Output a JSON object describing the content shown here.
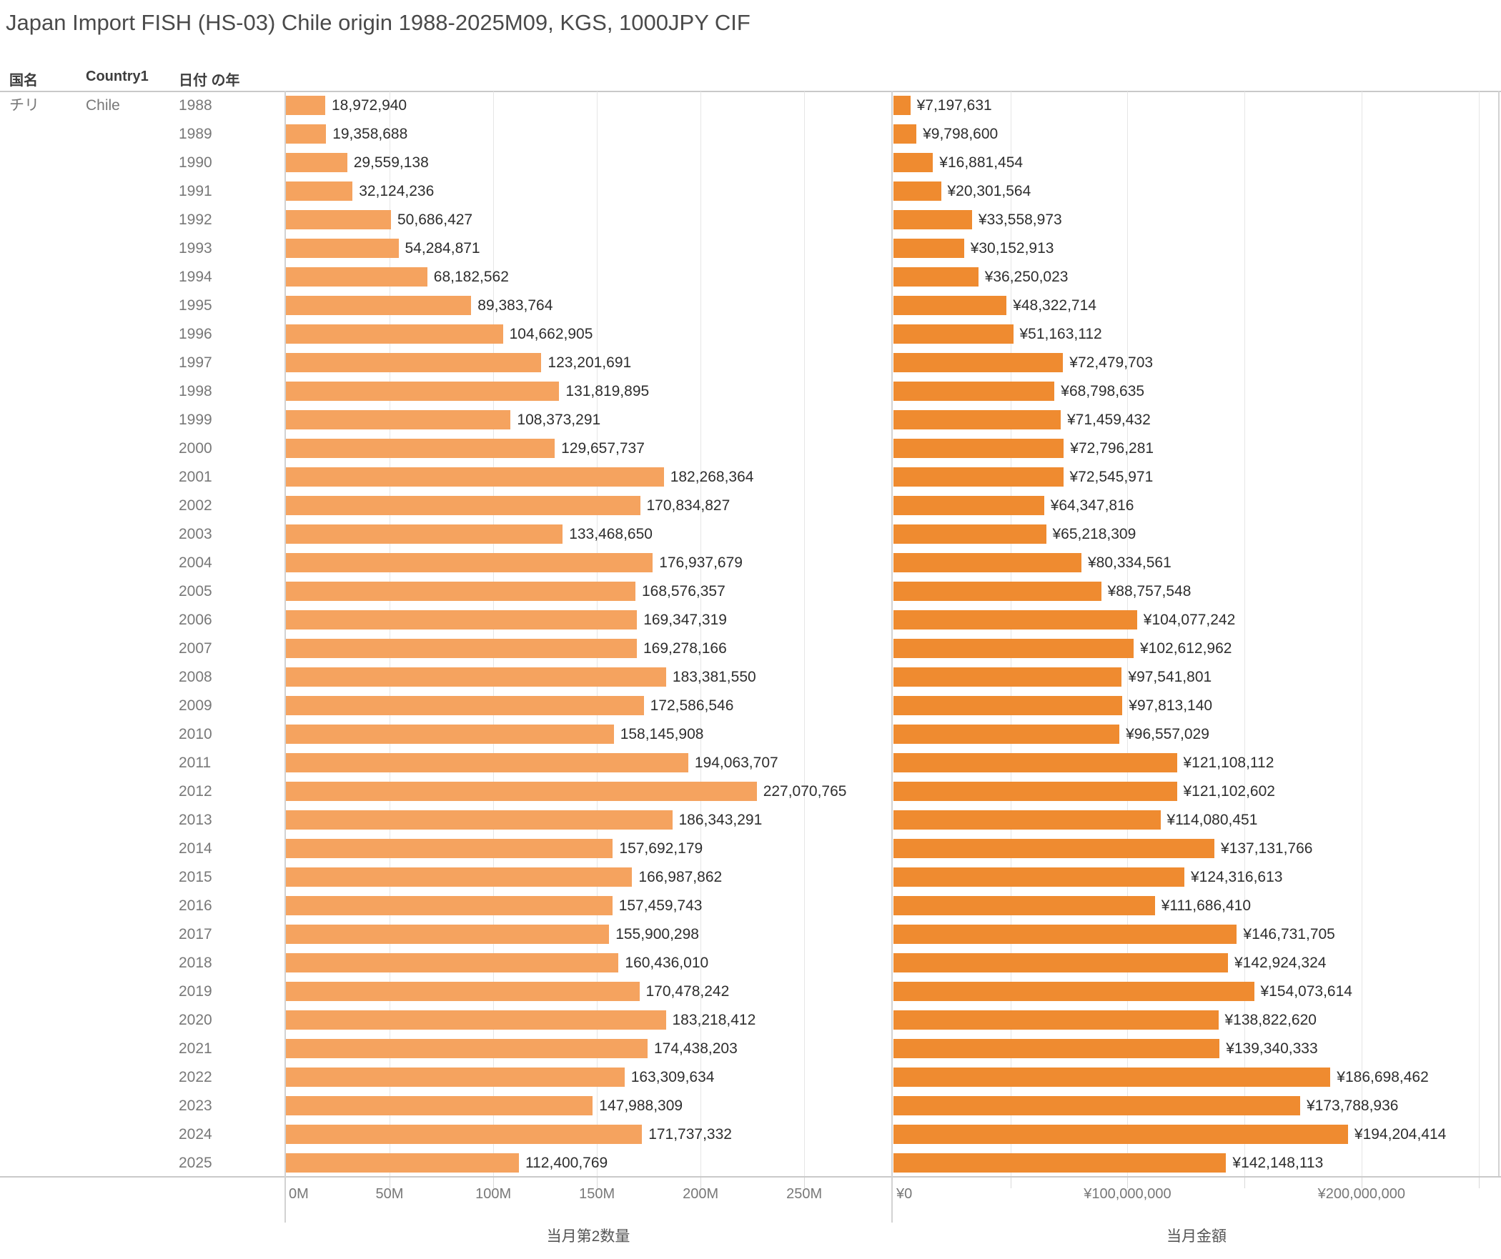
{
  "title": "Japan Import FISH (HS-03) Chile origin 1988-2025M09, KGS, 1000JPY CIF",
  "row_headers": {
    "col1": "国名",
    "col2": "Country1",
    "col3": "日付 の年"
  },
  "row_values": {
    "country_jp": "チリ",
    "country_en": "Chile"
  },
  "colors": {
    "qty_bar": "#F5A35F",
    "amount_bar": "#EF8B30",
    "gridline": "#e6e6e6",
    "axis_line": "#c9c9c9",
    "value_text": "#2e2e2e",
    "dim_text": "#787878",
    "header_text": "#3d3d3d",
    "title_text": "#4a4a4a"
  },
  "chart_data": [
    {
      "type": "bar",
      "name": "quantity",
      "title": "当月第2数量",
      "orientation": "horizontal",
      "legend": null,
      "grid": true,
      "categories": [
        1988,
        1989,
        1990,
        1991,
        1992,
        1993,
        1994,
        1995,
        1996,
        1997,
        1998,
        1999,
        2000,
        2001,
        2002,
        2003,
        2004,
        2005,
        2006,
        2007,
        2008,
        2009,
        2010,
        2011,
        2012,
        2013,
        2014,
        2015,
        2016,
        2017,
        2018,
        2019,
        2020,
        2021,
        2022,
        2023,
        2024,
        2025
      ],
      "values": [
        18972940,
        19358688,
        29559138,
        32124236,
        50686427,
        54284871,
        68182562,
        89383764,
        104662905,
        123201691,
        131819895,
        108373291,
        129657737,
        182268364,
        170834827,
        133468650,
        176937679,
        168576357,
        169347319,
        169278166,
        183381550,
        172586546,
        158145908,
        194063707,
        227070765,
        186343291,
        157692179,
        166987862,
        157459743,
        155900298,
        160436010,
        170478242,
        183218412,
        174438203,
        163309634,
        147988309,
        171737332,
        112400769
      ],
      "value_prefix": "",
      "xlim": [
        0,
        292000000
      ],
      "gridlines": [
        50000000,
        100000000,
        150000000,
        200000000,
        250000000
      ],
      "ticks": [
        {
          "value": 0,
          "label": "0M"
        },
        {
          "value": 50000000,
          "label": "50M"
        },
        {
          "value": 100000000,
          "label": "100M"
        },
        {
          "value": 150000000,
          "label": "150M"
        },
        {
          "value": 200000000,
          "label": "200M"
        },
        {
          "value": 250000000,
          "label": "250M"
        }
      ]
    },
    {
      "type": "bar",
      "name": "amount",
      "title": "当月金額",
      "orientation": "horizontal",
      "legend": null,
      "grid": true,
      "categories": [
        1988,
        1989,
        1990,
        1991,
        1992,
        1993,
        1994,
        1995,
        1996,
        1997,
        1998,
        1999,
        2000,
        2001,
        2002,
        2003,
        2004,
        2005,
        2006,
        2007,
        2008,
        2009,
        2010,
        2011,
        2012,
        2013,
        2014,
        2015,
        2016,
        2017,
        2018,
        2019,
        2020,
        2021,
        2022,
        2023,
        2024,
        2025
      ],
      "values": [
        7197631,
        9798600,
        16881454,
        20301564,
        33558973,
        30152913,
        36250023,
        48322714,
        51163112,
        72479703,
        68798635,
        71459432,
        72796281,
        72545971,
        64347816,
        65218309,
        80334561,
        88757548,
        104077242,
        102612962,
        97541801,
        97813140,
        96557029,
        121108112,
        121102602,
        114080451,
        137131766,
        124316613,
        111686410,
        146731705,
        142924324,
        154073614,
        138822620,
        139340333,
        186698462,
        173788936,
        194204414,
        142148113
      ],
      "value_prefix": "¥",
      "xlim": [
        0,
        259000000
      ],
      "gridlines": [
        50000000,
        100000000,
        150000000,
        200000000,
        250000000
      ],
      "ticks": [
        {
          "value": 0,
          "label": "¥0"
        },
        {
          "value": 100000000,
          "label": "¥100,000,000"
        },
        {
          "value": 200000000,
          "label": "¥200,000,000"
        }
      ]
    }
  ]
}
